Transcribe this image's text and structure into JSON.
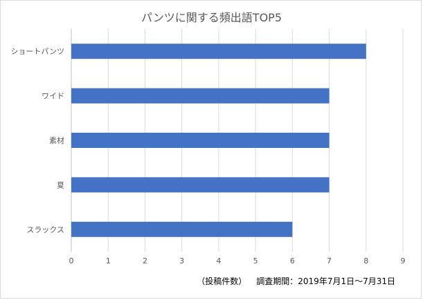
{
  "chart_data": {
    "type": "bar",
    "orientation": "horizontal",
    "title": "パンツに関する頻出語TOP5",
    "categories": [
      "ショートパンツ",
      "ワイド",
      "素材",
      "夏",
      "スラックス"
    ],
    "values": [
      8,
      7,
      7,
      7,
      6
    ],
    "xlim": [
      0,
      9
    ],
    "xticks": [
      "0",
      "1",
      "2",
      "3",
      "4",
      "5",
      "6",
      "7",
      "8",
      "9"
    ],
    "grid": true,
    "bar_color": "#4472c4"
  },
  "footnote": {
    "left": "（投稿件数）",
    "right": "調査期間：2019年7月1日〜7月31日"
  }
}
